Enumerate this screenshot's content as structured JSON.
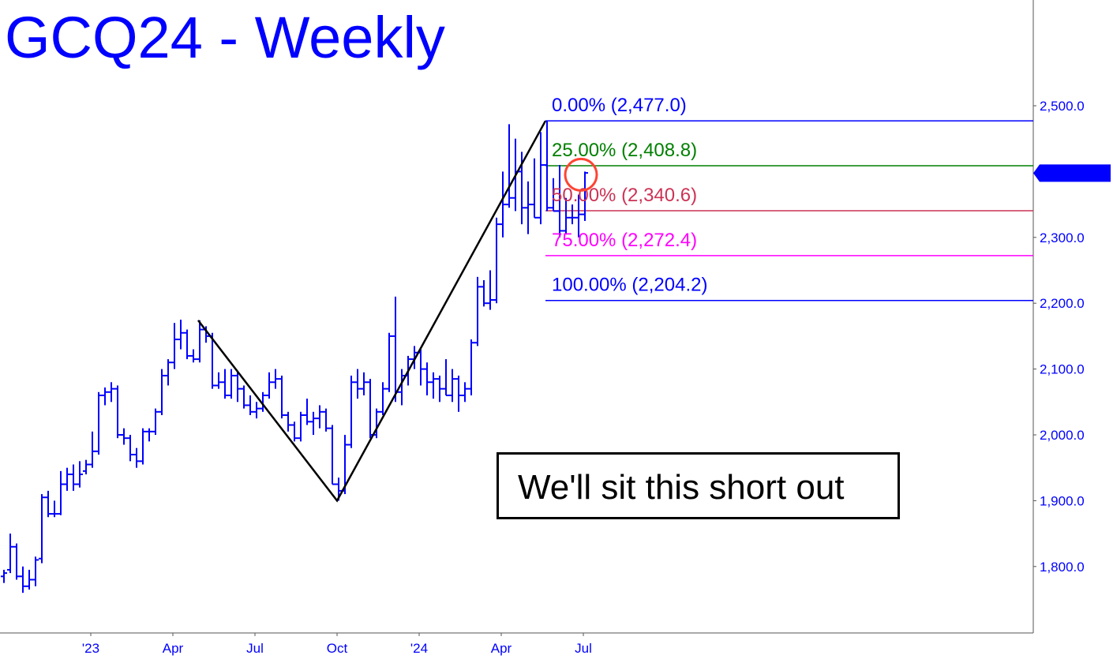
{
  "chart_data": {
    "type": "ohlc",
    "title": "GCQ24 - Weekly",
    "ylim": [
      1730,
      2540
    ],
    "y_ticks": [
      "2,500.0",
      "2,300.0",
      "2,200.0",
      "2,100.0",
      "2,000.0",
      "1,900.0",
      "1,800.0"
    ],
    "y_tick_values": [
      2500,
      2300,
      2200,
      2100,
      2000,
      1900,
      1800
    ],
    "x_ticks": [
      {
        "label": "'23",
        "date": "2023-01-02"
      },
      {
        "label": "Apr",
        "date": "2023-04-03"
      },
      {
        "label": "Jul",
        "date": "2023-07-03"
      },
      {
        "label": "Oct",
        "date": "2023-10-02"
      },
      {
        "label": "'24",
        "date": "2024-01-01"
      },
      {
        "label": "Apr",
        "date": "2024-04-01"
      },
      {
        "label": "Jul",
        "date": "2024-07-01"
      }
    ],
    "grid": false,
    "bar_color": "#0000ff",
    "bars_columns": [
      "week",
      "open",
      "high",
      "low",
      "close"
    ],
    "bars": [
      [
        "2022-09-26",
        1785,
        1795,
        1775,
        1790
      ],
      [
        "2022-10-03",
        1795,
        1850,
        1790,
        1830
      ],
      [
        "2022-10-10",
        1830,
        1835,
        1780,
        1785
      ],
      [
        "2022-10-17",
        1785,
        1800,
        1760,
        1770
      ],
      [
        "2022-10-24",
        1770,
        1795,
        1765,
        1780
      ],
      [
        "2022-10-31",
        1780,
        1815,
        1770,
        1810
      ],
      [
        "2022-11-07",
        1812,
        1910,
        1805,
        1905
      ],
      [
        "2022-11-14",
        1905,
        1915,
        1875,
        1880
      ],
      [
        "2022-11-21",
        1880,
        1900,
        1875,
        1880
      ],
      [
        "2022-11-28",
        1880,
        1945,
        1878,
        1925
      ],
      [
        "2022-12-05",
        1925,
        1950,
        1915,
        1940
      ],
      [
        "2022-12-12",
        1940,
        1955,
        1915,
        1925
      ],
      [
        "2022-12-19",
        1925,
        1960,
        1920,
        1940
      ],
      [
        "2022-12-26",
        1945,
        1962,
        1940,
        1955
      ],
      [
        "2023-01-02",
        1955,
        2005,
        1950,
        1975
      ],
      [
        "2023-01-09",
        1975,
        2065,
        1970,
        2060
      ],
      [
        "2023-01-16",
        2060,
        2072,
        2045,
        2065
      ],
      [
        "2023-01-23",
        2065,
        2080,
        2050,
        2070
      ],
      [
        "2023-02-06",
        2070,
        2075,
        1995,
        2000
      ],
      [
        "2023-02-06",
        2000,
        2010,
        1985,
        1995
      ],
      [
        "2023-02-13",
        1995,
        2000,
        1960,
        1970
      ],
      [
        "2023-02-20",
        1970,
        1980,
        1950,
        1960
      ],
      [
        "2023-02-27",
        1960,
        2010,
        1955,
        2005
      ],
      [
        "2023-03-06",
        2005,
        2010,
        1990,
        2005
      ],
      [
        "2023-03-13",
        2005,
        2040,
        2000,
        2035
      ],
      [
        "2023-03-20",
        2035,
        2100,
        2030,
        2090
      ],
      [
        "2023-03-27",
        2090,
        2115,
        2075,
        2110
      ],
      [
        "2023-04-03",
        2110,
        2170,
        2100,
        2145
      ],
      [
        "2023-04-10",
        2145,
        2175,
        2130,
        2155
      ],
      [
        "2023-04-17",
        2155,
        2160,
        2115,
        2120
      ],
      [
        "2023-04-24",
        2120,
        2130,
        2110,
        2115
      ],
      [
        "2023-05-01",
        2115,
        2174,
        2110,
        2160
      ],
      [
        "2023-05-08",
        2160,
        2165,
        2140,
        2150
      ],
      [
        "2023-05-15",
        2150,
        2155,
        2070,
        2075
      ],
      [
        "2023-05-22",
        2075,
        2095,
        2070,
        2080
      ],
      [
        "2023-05-29",
        2080,
        2100,
        2055,
        2060
      ],
      [
        "2023-06-05",
        2060,
        2100,
        2055,
        2090
      ],
      [
        "2023-06-12",
        2090,
        2095,
        2050,
        2070
      ],
      [
        "2023-06-19",
        2070,
        2075,
        2040,
        2045
      ],
      [
        "2023-06-26",
        2045,
        2060,
        2030,
        2035
      ],
      [
        "2023-07-03",
        2035,
        2050,
        2025,
        2040
      ],
      [
        "2023-07-10",
        2040,
        2065,
        2035,
        2060
      ],
      [
        "2023-07-17",
        2060,
        2095,
        2055,
        2080
      ],
      [
        "2023-07-24",
        2080,
        2100,
        2070,
        2085
      ],
      [
        "2023-07-31",
        2085,
        2090,
        2025,
        2030
      ],
      [
        "2023-08-07",
        2030,
        2035,
        2005,
        2015
      ],
      [
        "2023-08-14",
        2015,
        2020,
        1990,
        1995
      ],
      [
        "2023-08-21",
        1995,
        2035,
        1990,
        2030
      ],
      [
        "2023-08-28",
        2030,
        2055,
        2015,
        2020
      ],
      [
        "2023-09-04",
        2020,
        2035,
        2000,
        2025
      ],
      [
        "2023-09-11",
        2025,
        2045,
        2010,
        2035
      ],
      [
        "2023-09-18",
        2035,
        2040,
        2005,
        2010
      ],
      [
        "2023-09-25",
        2010,
        2015,
        1925,
        1925
      ],
      [
        "2023-10-02",
        1925,
        1935,
        1900,
        1915
      ],
      [
        "2023-10-09",
        1915,
        2000,
        1910,
        1985
      ],
      [
        "2023-10-16",
        1985,
        2090,
        1980,
        2080
      ],
      [
        "2023-10-23",
        2080,
        2100,
        2055,
        2070
      ],
      [
        "2023-10-30",
        2070,
        2095,
        2060,
        2080
      ],
      [
        "2023-11-06",
        2080,
        2085,
        1995,
        2000
      ],
      [
        "2023-11-13",
        2000,
        2040,
        1995,
        2035
      ],
      [
        "2023-11-20",
        2035,
        2080,
        2030,
        2070
      ],
      [
        "2023-11-27",
        2070,
        2155,
        2065,
        2150
      ],
      [
        "2023-12-04",
        2150,
        2210,
        2050,
        2065
      ],
      [
        "2023-12-11",
        2065,
        2100,
        2045,
        2090
      ],
      [
        "2023-12-18",
        2090,
        2120,
        2075,
        2115
      ],
      [
        "2023-12-25",
        2115,
        2135,
        2100,
        2125
      ],
      [
        "2024-01-01",
        2125,
        2130,
        2075,
        2100
      ],
      [
        "2024-01-08",
        2100,
        2110,
        2060,
        2080
      ],
      [
        "2024-01-15",
        2080,
        2095,
        2055,
        2085
      ],
      [
        "2024-01-22",
        2085,
        2090,
        2050,
        2070
      ],
      [
        "2024-01-29",
        2070,
        2115,
        2060,
        2060
      ],
      [
        "2024-02-05",
        2060,
        2100,
        2050,
        2085
      ],
      [
        "2024-02-12",
        2085,
        2090,
        2035,
        2060
      ],
      [
        "2024-02-19",
        2060,
        2080,
        2050,
        2070
      ],
      [
        "2024-02-26",
        2070,
        2145,
        2060,
        2140
      ],
      [
        "2024-03-04",
        2140,
        2240,
        2135,
        2225
      ],
      [
        "2024-03-11",
        2225,
        2235,
        2195,
        2200
      ],
      [
        "2024-03-18",
        2200,
        2250,
        2190,
        2205
      ],
      [
        "2024-03-25",
        2205,
        2330,
        2200,
        2320
      ],
      [
        "2024-04-01",
        2320,
        2400,
        2300,
        2350
      ],
      [
        "2024-04-08",
        2350,
        2472,
        2345,
        2360
      ],
      [
        "2024-04-15",
        2360,
        2450,
        2340,
        2400
      ],
      [
        "2024-04-22",
        2400,
        2430,
        2320,
        2345
      ],
      [
        "2024-04-29",
        2345,
        2385,
        2305,
        2350
      ],
      [
        "2024-05-06",
        2350,
        2420,
        2330,
        2330
      ],
      [
        "2024-05-13",
        2330,
        2460,
        2320,
        2410
      ],
      [
        "2024-05-20",
        2410,
        2477,
        2340,
        2345
      ],
      [
        "2024-05-27",
        2345,
        2390,
        2340,
        2340
      ],
      [
        "2024-06-03",
        2340,
        2410,
        2300,
        2310
      ],
      [
        "2024-06-10",
        2310,
        2360,
        2305,
        2330
      ],
      [
        "2024-06-17",
        2330,
        2350,
        2320,
        2330
      ],
      [
        "2024-06-24",
        2330,
        2365,
        2300,
        2335
      ],
      [
        "2024-07-01",
        2335,
        2400,
        2325,
        2398
      ]
    ],
    "wave_lines": [
      {
        "points": [
          [
            "2023-05-01",
            2174
          ],
          [
            "2023-10-02",
            1900
          ],
          [
            "2024-05-20",
            2477
          ]
        ],
        "color": "#000000"
      }
    ],
    "retracement_start": "2024-05-20",
    "retracement_levels": [
      {
        "label": "0.00% (2,477.0)",
        "value": 2477.0,
        "color": "#0000ff"
      },
      {
        "label": "25.00% (2,408.8)",
        "value": 2408.8,
        "color": "#008000"
      },
      {
        "label": "50.00% (2,340.6)",
        "value": 2340.6,
        "color": "#cc3355"
      },
      {
        "label": "75.00% (2,272.4)",
        "value": 2272.4,
        "color": "#ff00ff"
      },
      {
        "label": "100.00% (2,204.2)",
        "value": 2204.2,
        "color": "#0000ff"
      }
    ],
    "last_price": {
      "label": "2,397.7",
      "value": 2397.7,
      "color": "#0000ff"
    },
    "highlight_circle": {
      "date": "2024-07-01",
      "value": 2400,
      "color": "#ff4433"
    },
    "annotation": "We'll sit this short out"
  }
}
